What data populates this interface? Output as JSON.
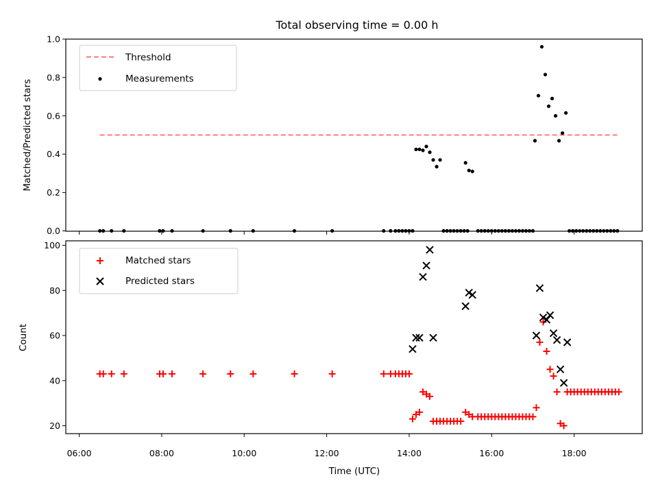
{
  "chart_data": [
    {
      "type": "scatter",
      "title": "Total observing time = 0.00 h",
      "ylabel": "Matched/Predicted stars",
      "xlabel": "",
      "xlim": [
        "06:00",
        "19:00"
      ],
      "ylim": [
        0,
        1.0
      ],
      "yticks": [
        "0.0",
        "0.2",
        "0.4",
        "0.6",
        "0.8",
        "1.0"
      ],
      "legend_position": "top-left",
      "threshold": {
        "name": "Threshold",
        "color": "#ff7f7f",
        "style": "dashed",
        "y": 0.5,
        "x_from": "06:30",
        "x_to": "19:05"
      },
      "series": [
        {
          "name": "Measurements",
          "color": "#000000",
          "marker": "dot",
          "points": [
            [
              "06:30",
              0.0
            ],
            [
              "06:35",
              0.0
            ],
            [
              "06:47",
              0.0
            ],
            [
              "07:05",
              0.0
            ],
            [
              "07:57",
              0.0
            ],
            [
              "08:02",
              0.0
            ],
            [
              "08:15",
              0.0
            ],
            [
              "09:00",
              0.0
            ],
            [
              "09:40",
              0.0
            ],
            [
              "10:13",
              0.0
            ],
            [
              "11:13",
              0.0
            ],
            [
              "12:08",
              0.0
            ],
            [
              "13:23",
              0.0
            ],
            [
              "13:33",
              0.0
            ],
            [
              "13:40",
              0.0
            ],
            [
              "13:45",
              0.0
            ],
            [
              "13:50",
              0.0
            ],
            [
              "13:55",
              0.0
            ],
            [
              "14:00",
              0.0
            ],
            [
              "14:05",
              0.0
            ],
            [
              "14:10",
              0.425
            ],
            [
              "14:15",
              0.425
            ],
            [
              "14:20",
              0.42
            ],
            [
              "14:25",
              0.44
            ],
            [
              "14:30",
              0.41
            ],
            [
              "14:35",
              0.37
            ],
            [
              "14:40",
              0.335
            ],
            [
              "14:45",
              0.37
            ],
            [
              "14:50",
              0.0
            ],
            [
              "14:55",
              0.0
            ],
            [
              "15:00",
              0.0
            ],
            [
              "15:05",
              0.0
            ],
            [
              "15:10",
              0.0
            ],
            [
              "15:15",
              0.0
            ],
            [
              "15:20",
              0.0
            ],
            [
              "15:25",
              0.0
            ],
            [
              "15:22",
              0.355
            ],
            [
              "15:27",
              0.315
            ],
            [
              "15:32",
              0.31
            ],
            [
              "15:40",
              0.0
            ],
            [
              "15:45",
              0.0
            ],
            [
              "15:50",
              0.0
            ],
            [
              "15:55",
              0.0
            ],
            [
              "16:00",
              0.0
            ],
            [
              "16:05",
              0.0
            ],
            [
              "16:10",
              0.0
            ],
            [
              "16:15",
              0.0
            ],
            [
              "16:20",
              0.0
            ],
            [
              "16:25",
              0.0
            ],
            [
              "16:30",
              0.0
            ],
            [
              "16:35",
              0.0
            ],
            [
              "16:40",
              0.0
            ],
            [
              "16:45",
              0.0
            ],
            [
              "16:50",
              0.0
            ],
            [
              "16:55",
              0.0
            ],
            [
              "17:00",
              0.0
            ],
            [
              "17:03",
              0.47
            ],
            [
              "17:08",
              0.705
            ],
            [
              "17:13",
              0.96
            ],
            [
              "17:18",
              0.815
            ],
            [
              "17:23",
              0.65
            ],
            [
              "17:28",
              0.69
            ],
            [
              "17:33",
              0.6
            ],
            [
              "17:38",
              0.47
            ],
            [
              "17:43",
              0.51
            ],
            [
              "17:48",
              0.615
            ],
            [
              "17:53",
              0.0
            ],
            [
              "17:58",
              0.0
            ],
            [
              "18:03",
              0.0
            ],
            [
              "18:08",
              0.0
            ],
            [
              "18:13",
              0.0
            ],
            [
              "18:18",
              0.0
            ],
            [
              "18:23",
              0.0
            ],
            [
              "18:28",
              0.0
            ],
            [
              "18:33",
              0.0
            ],
            [
              "18:38",
              0.0
            ],
            [
              "18:43",
              0.0
            ],
            [
              "18:48",
              0.0
            ],
            [
              "18:53",
              0.0
            ],
            [
              "18:58",
              0.0
            ],
            [
              "19:03",
              0.0
            ]
          ]
        }
      ]
    },
    {
      "type": "scatter",
      "title": "",
      "ylabel": "Count",
      "xlabel": "Time (UTC)",
      "xlim": [
        "06:00",
        "19:00"
      ],
      "ylim": [
        20,
        100
      ],
      "yticks": [
        "20",
        "40",
        "60",
        "80",
        "100"
      ],
      "xticks": [
        "06:00",
        "08:00",
        "10:00",
        "12:00",
        "14:00",
        "16:00",
        "18:00"
      ],
      "legend_position": "top-left",
      "series": [
        {
          "name": "Matched stars",
          "color": "#ff0000",
          "marker": "plus",
          "points": [
            [
              "06:30",
              43
            ],
            [
              "06:35",
              43
            ],
            [
              "06:47",
              43
            ],
            [
              "07:05",
              43
            ],
            [
              "07:57",
              43
            ],
            [
              "08:02",
              43
            ],
            [
              "08:15",
              43
            ],
            [
              "09:00",
              43
            ],
            [
              "09:40",
              43
            ],
            [
              "10:13",
              43
            ],
            [
              "11:13",
              43
            ],
            [
              "12:08",
              43
            ],
            [
              "13:23",
              43
            ],
            [
              "13:33",
              43
            ],
            [
              "13:40",
              43
            ],
            [
              "13:45",
              43
            ],
            [
              "13:50",
              43
            ],
            [
              "13:55",
              43
            ],
            [
              "14:00",
              43
            ],
            [
              "14:05",
              23
            ],
            [
              "14:10",
              25
            ],
            [
              "14:15",
              26
            ],
            [
              "14:20",
              35
            ],
            [
              "14:25",
              34
            ],
            [
              "14:30",
              33
            ],
            [
              "14:35",
              22
            ],
            [
              "14:40",
              22
            ],
            [
              "14:45",
              22
            ],
            [
              "14:50",
              22
            ],
            [
              "14:55",
              22
            ],
            [
              "15:00",
              22
            ],
            [
              "15:05",
              22
            ],
            [
              "15:10",
              22
            ],
            [
              "15:15",
              22
            ],
            [
              "15:22",
              26
            ],
            [
              "15:27",
              25
            ],
            [
              "15:32",
              24
            ],
            [
              "15:40",
              24
            ],
            [
              "15:45",
              24
            ],
            [
              "15:50",
              24
            ],
            [
              "15:55",
              24
            ],
            [
              "16:00",
              24
            ],
            [
              "16:05",
              24
            ],
            [
              "16:10",
              24
            ],
            [
              "16:15",
              24
            ],
            [
              "16:20",
              24
            ],
            [
              "16:25",
              24
            ],
            [
              "16:30",
              24
            ],
            [
              "16:35",
              24
            ],
            [
              "16:40",
              24
            ],
            [
              "16:45",
              24
            ],
            [
              "16:50",
              24
            ],
            [
              "16:55",
              24
            ],
            [
              "17:00",
              24
            ],
            [
              "17:05",
              28
            ],
            [
              "17:10",
              57
            ],
            [
              "17:15",
              66
            ],
            [
              "17:20",
              53
            ],
            [
              "17:25",
              45
            ],
            [
              "17:30",
              42
            ],
            [
              "17:35",
              35
            ],
            [
              "17:40",
              21
            ],
            [
              "17:45",
              20
            ],
            [
              "17:50",
              35
            ],
            [
              "17:55",
              35
            ],
            [
              "18:00",
              35
            ],
            [
              "18:05",
              35
            ],
            [
              "18:10",
              35
            ],
            [
              "18:15",
              35
            ],
            [
              "18:20",
              35
            ],
            [
              "18:25",
              35
            ],
            [
              "18:30",
              35
            ],
            [
              "18:35",
              35
            ],
            [
              "18:40",
              35
            ],
            [
              "18:45",
              35
            ],
            [
              "18:50",
              35
            ],
            [
              "18:55",
              35
            ],
            [
              "19:00",
              35
            ],
            [
              "19:05",
              35
            ]
          ]
        },
        {
          "name": "Predicted stars",
          "color": "#000000",
          "marker": "x",
          "points": [
            [
              "14:05",
              54
            ],
            [
              "14:10",
              59
            ],
            [
              "14:15",
              59
            ],
            [
              "14:20",
              86
            ],
            [
              "14:25",
              91
            ],
            [
              "14:30",
              98
            ],
            [
              "14:35",
              59
            ],
            [
              "15:22",
              73
            ],
            [
              "15:27",
              79
            ],
            [
              "15:32",
              78
            ],
            [
              "17:05",
              60
            ],
            [
              "17:10",
              81
            ],
            [
              "17:15",
              68
            ],
            [
              "17:20",
              67
            ],
            [
              "17:25",
              69
            ],
            [
              "17:30",
              61
            ],
            [
              "17:35",
              58
            ],
            [
              "17:40",
              45
            ],
            [
              "17:45",
              39
            ],
            [
              "17:50",
              57
            ]
          ]
        }
      ]
    }
  ]
}
